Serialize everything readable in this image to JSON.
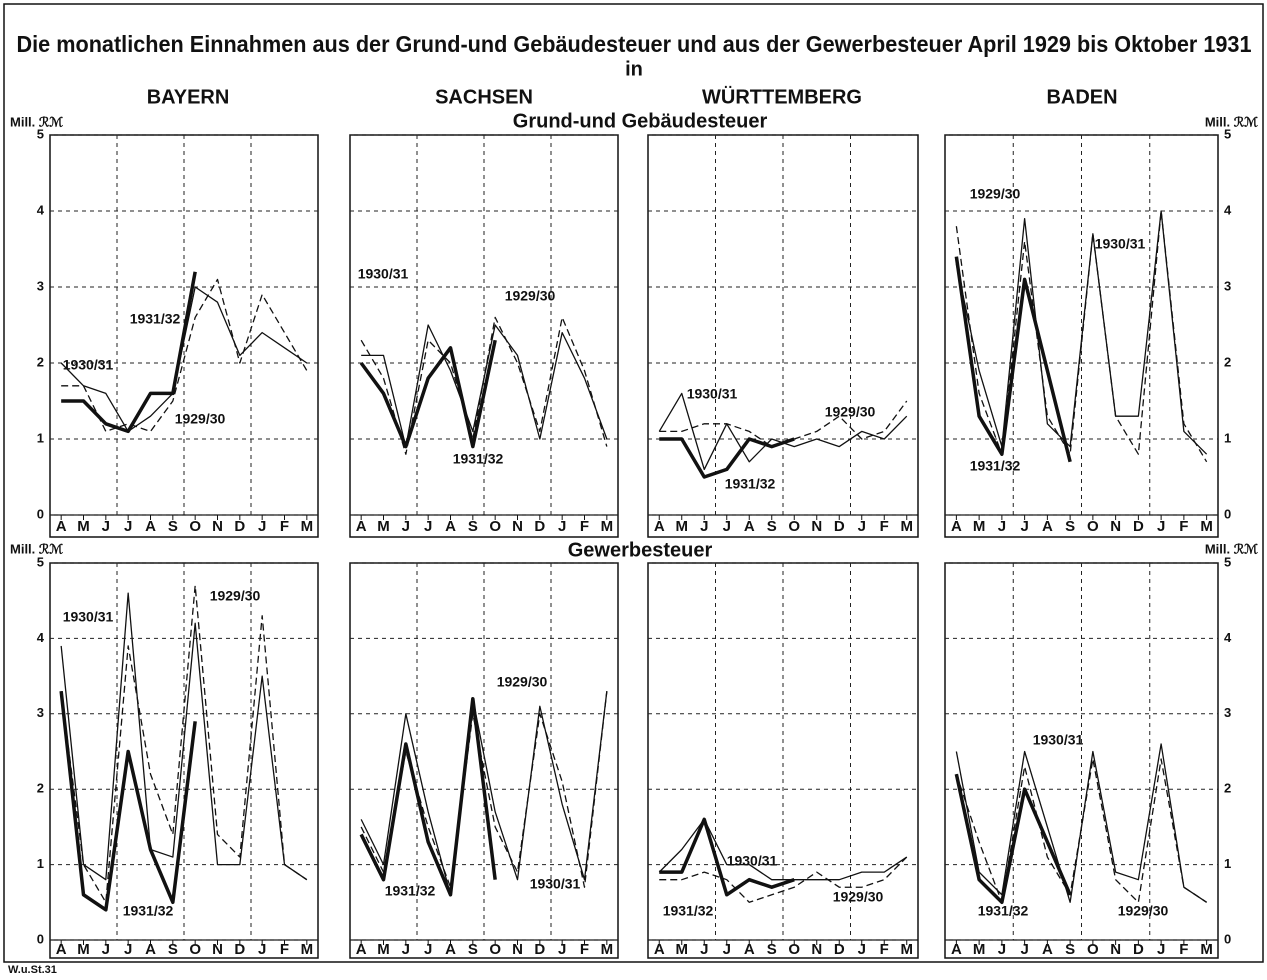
{
  "title": "Die monatlichen Einnahmen aus der Grund-und Gebäudesteuer und aus der Gewerbesteuer April 1929 bis Oktober 1931",
  "connector": "in",
  "regions": [
    "BAYERN",
    "SACHSEN",
    "WÜRTTEMBERG",
    "BADEN"
  ],
  "rows": [
    "Grund-und Gebäudesteuer",
    "Gewerbesteuer"
  ],
  "y_unit": "Mill. ℛℳ",
  "footer": "W.u.St.31",
  "chart_data": [
    {
      "type": "line",
      "categories": [
        "A",
        "M",
        "J",
        "J",
        "A",
        "S",
        "O",
        "N",
        "D",
        "J",
        "F",
        "M"
      ],
      "ylim": [
        0,
        5
      ],
      "yticks": [
        0,
        1,
        2,
        3,
        4,
        5
      ],
      "grid": true,
      "series": [
        {
          "name": "1929/30",
          "color": "#111",
          "style": "dashed",
          "width": 1.3,
          "values": [
            1.7,
            1.7,
            1.1,
            1.2,
            1.1,
            1.5,
            2.6,
            3.1,
            2.0,
            2.9,
            2.4,
            1.9
          ]
        },
        {
          "name": "1930/31",
          "color": "#111",
          "style": "solid",
          "width": 1.3,
          "values": [
            2.0,
            1.7,
            1.6,
            1.1,
            1.3,
            1.6,
            3.0,
            2.8,
            2.1,
            2.4,
            2.2,
            2.0
          ]
        },
        {
          "name": "1931/32",
          "color": "#111",
          "style": "solid",
          "width": 3.5,
          "values": [
            1.5,
            1.5,
            1.2,
            1.1,
            1.6,
            1.6,
            3.2,
            null,
            null,
            null,
            null,
            null
          ]
        }
      ]
    },
    {
      "type": "line",
      "categories": [
        "A",
        "M",
        "J",
        "J",
        "A",
        "S",
        "O",
        "N",
        "D",
        "J",
        "F",
        "M"
      ],
      "ylim": [
        0,
        5
      ],
      "yticks": [
        0,
        1,
        2,
        3,
        4,
        5
      ],
      "grid": true,
      "series": [
        {
          "name": "1929/30",
          "color": "#111",
          "style": "dashed",
          "width": 1.3,
          "values": [
            2.3,
            1.8,
            0.8,
            2.3,
            2.0,
            1.0,
            2.6,
            2.0,
            1.1,
            2.6,
            1.9,
            0.9
          ]
        },
        {
          "name": "1930/31",
          "color": "#111",
          "style": "solid",
          "width": 1.3,
          "values": [
            2.1,
            2.1,
            0.9,
            2.5,
            1.9,
            1.1,
            2.5,
            2.1,
            1.0,
            2.4,
            1.8,
            1.0
          ]
        },
        {
          "name": "1931/32",
          "color": "#111",
          "style": "solid",
          "width": 3.5,
          "values": [
            2.0,
            1.6,
            0.9,
            1.8,
            2.2,
            0.9,
            2.3,
            null,
            null,
            null,
            null,
            null
          ]
        }
      ]
    },
    {
      "type": "line",
      "categories": [
        "A",
        "M",
        "J",
        "J",
        "A",
        "S",
        "O",
        "N",
        "D",
        "J",
        "F",
        "M"
      ],
      "ylim": [
        0,
        5
      ],
      "yticks": [
        0,
        1,
        2,
        3,
        4,
        5
      ],
      "grid": true,
      "series": [
        {
          "name": "1929/30",
          "color": "#111",
          "style": "dashed",
          "width": 1.3,
          "values": [
            1.1,
            1.1,
            1.2,
            1.2,
            1.1,
            0.9,
            1.0,
            1.1,
            1.3,
            1.0,
            1.1,
            1.5
          ]
        },
        {
          "name": "1930/31",
          "color": "#111",
          "style": "solid",
          "width": 1.3,
          "values": [
            1.1,
            1.6,
            0.6,
            1.2,
            0.7,
            1.0,
            0.9,
            1.0,
            0.9,
            1.1,
            1.0,
            1.3
          ]
        },
        {
          "name": "1931/32",
          "color": "#111",
          "style": "solid",
          "width": 3.5,
          "values": [
            1.0,
            1.0,
            0.5,
            0.6,
            1.0,
            0.9,
            1.0,
            null,
            null,
            null,
            null,
            null
          ]
        }
      ]
    },
    {
      "type": "line",
      "categories": [
        "A",
        "M",
        "J",
        "J",
        "A",
        "S",
        "O",
        "N",
        "D",
        "J",
        "F",
        "M"
      ],
      "ylim": [
        0,
        5
      ],
      "yticks": [
        0,
        1,
        2,
        3,
        4,
        5
      ],
      "grid": true,
      "series": [
        {
          "name": "1929/30",
          "color": "#111",
          "style": "dashed",
          "width": 1.3,
          "values": [
            3.8,
            1.6,
            0.8,
            3.6,
            1.3,
            0.8,
            3.7,
            1.3,
            0.8,
            4.0,
            1.2,
            0.7
          ]
        },
        {
          "name": "1930/31",
          "color": "#111",
          "style": "solid",
          "width": 1.3,
          "values": [
            3.3,
            1.9,
            0.9,
            3.9,
            1.2,
            0.9,
            3.7,
            1.3,
            1.3,
            4.0,
            1.1,
            0.8
          ]
        },
        {
          "name": "1931/32",
          "color": "#111",
          "style": "solid",
          "width": 3.5,
          "values": [
            3.4,
            1.3,
            0.8,
            3.1,
            1.9,
            0.7,
            null,
            null,
            null,
            null,
            null,
            null
          ]
        }
      ]
    },
    {
      "type": "line",
      "categories": [
        "A",
        "M",
        "J",
        "J",
        "A",
        "S",
        "O",
        "N",
        "D",
        "J",
        "F",
        "M"
      ],
      "ylim": [
        0,
        5
      ],
      "yticks": [
        0,
        1,
        2,
        3,
        4,
        5
      ],
      "grid": true,
      "series": [
        {
          "name": "1929/30",
          "color": "#111",
          "style": "dashed",
          "width": 1.3,
          "values": [
            3.3,
            1.0,
            0.5,
            3.9,
            2.2,
            1.4,
            4.7,
            1.4,
            1.1,
            4.3,
            1.0,
            0.8
          ]
        },
        {
          "name": "1930/31",
          "color": "#111",
          "style": "solid",
          "width": 1.3,
          "values": [
            3.9,
            1.0,
            0.8,
            4.6,
            1.2,
            1.1,
            4.2,
            1.0,
            1.0,
            3.5,
            1.0,
            0.8
          ]
        },
        {
          "name": "1931/32",
          "color": "#111",
          "style": "solid",
          "width": 3.5,
          "values": [
            3.3,
            0.6,
            0.4,
            2.5,
            1.2,
            0.5,
            2.9,
            null,
            null,
            null,
            null,
            null
          ]
        }
      ]
    },
    {
      "type": "line",
      "categories": [
        "A",
        "M",
        "J",
        "J",
        "A",
        "S",
        "O",
        "N",
        "D",
        "J",
        "F",
        "M"
      ],
      "ylim": [
        0,
        5
      ],
      "yticks": [
        0,
        1,
        2,
        3,
        4,
        5
      ],
      "grid": true,
      "series": [
        {
          "name": "1929/30",
          "color": "#111",
          "style": "dashed",
          "width": 1.3,
          "values": [
            1.5,
            0.9,
            2.5,
            1.5,
            0.7,
            3.0,
            1.5,
            0.9,
            3.0,
            2.1,
            0.7,
            3.3
          ]
        },
        {
          "name": "1930/31",
          "color": "#111",
          "style": "solid",
          "width": 1.3,
          "values": [
            1.6,
            1.0,
            3.0,
            1.7,
            0.6,
            3.2,
            1.7,
            0.8,
            3.1,
            1.8,
            0.8,
            3.3
          ]
        },
        {
          "name": "1931/32",
          "color": "#111",
          "style": "solid",
          "width": 3.5,
          "values": [
            1.4,
            0.8,
            2.6,
            1.3,
            0.6,
            3.2,
            0.8,
            null,
            null,
            null,
            null,
            null
          ]
        }
      ]
    },
    {
      "type": "line",
      "categories": [
        "A",
        "M",
        "J",
        "J",
        "A",
        "S",
        "O",
        "N",
        "D",
        "J",
        "F",
        "M"
      ],
      "ylim": [
        0,
        5
      ],
      "yticks": [
        0,
        1,
        2,
        3,
        4,
        5
      ],
      "grid": true,
      "series": [
        {
          "name": "1929/30",
          "color": "#111",
          "style": "dashed",
          "width": 1.3,
          "values": [
            0.8,
            0.8,
            0.9,
            0.8,
            0.5,
            0.6,
            0.7,
            0.9,
            0.7,
            0.7,
            0.8,
            1.1
          ]
        },
        {
          "name": "1930/31",
          "color": "#111",
          "style": "solid",
          "width": 1.3,
          "values": [
            0.9,
            1.2,
            1.6,
            1.0,
            1.0,
            0.8,
            0.8,
            0.8,
            0.8,
            0.9,
            0.9,
            1.1
          ]
        },
        {
          "name": "1931/32",
          "color": "#111",
          "style": "solid",
          "width": 3.5,
          "values": [
            0.9,
            0.9,
            1.6,
            0.6,
            0.8,
            0.7,
            0.8,
            null,
            null,
            null,
            null,
            null
          ]
        }
      ]
    },
    {
      "type": "line",
      "categories": [
        "A",
        "M",
        "J",
        "J",
        "A",
        "S",
        "O",
        "N",
        "D",
        "J",
        "F",
        "M"
      ],
      "ylim": [
        0,
        5
      ],
      "yticks": [
        0,
        1,
        2,
        3,
        4,
        5
      ],
      "grid": true,
      "series": [
        {
          "name": "1929/30",
          "color": "#111",
          "style": "dashed",
          "width": 1.3,
          "values": [
            2.2,
            1.3,
            0.5,
            2.3,
            1.1,
            0.6,
            2.4,
            0.8,
            0.5,
            2.4,
            0.7,
            0.5
          ]
        },
        {
          "name": "1930/31",
          "color": "#111",
          "style": "solid",
          "width": 1.3,
          "values": [
            2.5,
            0.9,
            0.6,
            2.5,
            1.5,
            0.5,
            2.5,
            0.9,
            0.8,
            2.6,
            0.7,
            0.5
          ]
        },
        {
          "name": "1931/32",
          "color": "#111",
          "style": "solid",
          "width": 3.5,
          "values": [
            2.2,
            0.8,
            0.5,
            2.0,
            1.3,
            0.6,
            null,
            null,
            null,
            null,
            null,
            null
          ]
        }
      ]
    }
  ]
}
